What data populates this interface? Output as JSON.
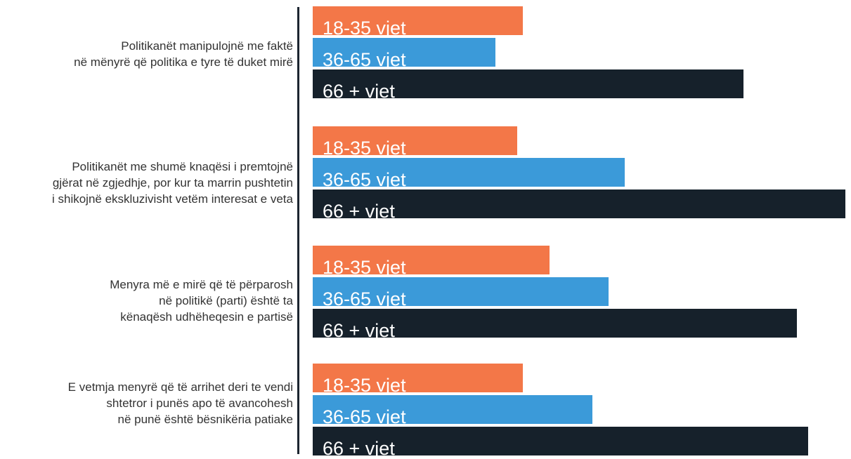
{
  "chart_data": {
    "type": "bar",
    "orientation": "horizontal",
    "categories": [
      "Politikanët manipulojnë me faktë\nnë mënyrë që politika e tyre të duket mirë",
      "Politikanët me shumë knaqësi i premtojnë\ngjërat në zgjedhje, por kur ta marrin pushtetin\ni shikojnë ekskluzivisht vetëm interesat e veta",
      "Menyra më e mirë që të përparosh\nnë politikë (parti) është ta\nkënaqësh udhëheqesin e partisë",
      "E vetmja menyrë që të arrihet deri te vendi\nshtetror i punës apo të avancohesh\nnë punë është bësnikëria patiake"
    ],
    "series": [
      {
        "name": "18-35 vjet",
        "color": "#f37748",
        "values": [
          0.39,
          0.38,
          0.44,
          0.39
        ]
      },
      {
        "name": "36-65 vjet",
        "color": "#3b9ad9",
        "values": [
          0.34,
          0.58,
          0.55,
          0.52
        ]
      },
      {
        "name": "66 + vjet",
        "color": "#16212b",
        "values": [
          0.8,
          0.99,
          0.9,
          0.92
        ]
      }
    ],
    "grid": false,
    "legend": "none"
  }
}
